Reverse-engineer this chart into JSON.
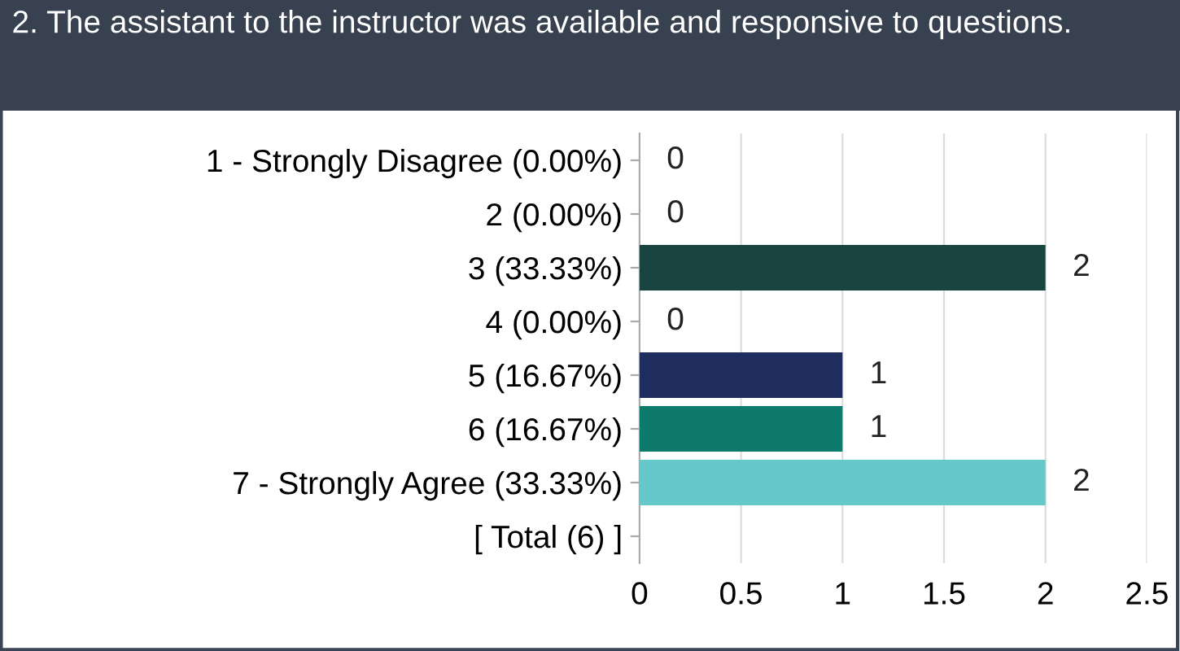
{
  "chart_data": {
    "type": "bar",
    "orientation": "horizontal",
    "title": "2. The assistant to the instructor was available and responsive to questions.",
    "categories": [
      "1 - Strongly Disagree (0.00%)",
      "2 (0.00%)",
      "3 (33.33%)",
      "4 (0.00%)",
      "5 (16.67%)",
      "6 (16.67%)",
      "7 - Strongly Agree (33.33%)",
      "[ Total (6) ]"
    ],
    "values": [
      0,
      0,
      2,
      0,
      1,
      1,
      2,
      null
    ],
    "colors": [
      "#1a4440",
      "#1a4440",
      "#1a4440",
      "#1a4440",
      "#1f2d5e",
      "#0e7a6b",
      "#66c8c8",
      "#66c8c8"
    ],
    "value_labels": [
      "0",
      "0",
      "2",
      "0",
      "1",
      "1",
      "2",
      null
    ],
    "xlim": [
      0,
      2.5
    ],
    "xticks": [
      0,
      0.5,
      1,
      1.5,
      2,
      2.5
    ],
    "grid": "x",
    "legend": false
  }
}
